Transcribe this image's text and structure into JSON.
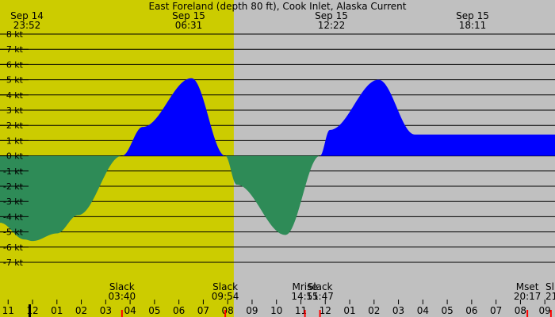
{
  "chart_data": {
    "type": "area",
    "title": "East Foreland (depth 80 ft), Cook Inlet, Alaska Current",
    "y_unit": "kt",
    "ylim": [
      -7,
      8
    ],
    "y_ticks": [
      "8 kt",
      "7 kt",
      "6 kt",
      "5 kt",
      "4 kt",
      "3 kt",
      "2 kt",
      "1 kt",
      "0 kt",
      "-1 kt",
      "-2 kt",
      "-3 kt",
      "-4 kt",
      "-5 kt",
      "-6 kt",
      "-7 kt"
    ],
    "x_range": [
      "2024-09-14T10:40",
      "2024-09-15T09:25"
    ],
    "x_tick_labels": [
      "11",
      "12",
      "01",
      "02",
      "03",
      "04",
      "05",
      "06",
      "07",
      "08",
      "09",
      "10",
      "11",
      "12",
      "01",
      "02",
      "03",
      "04",
      "05",
      "06",
      "07",
      "08",
      "09"
    ],
    "daylight": {
      "start": "2024-09-14T07:40",
      "end": "2024-09-14T20:15"
    },
    "colors": {
      "flood": "#0000ff",
      "ebb": "#2e8b57",
      "night": "#c0c0c0",
      "day": "#cccc00",
      "grid": "#000000",
      "marker": "#ff0000"
    },
    "top_events": [
      {
        "date": "Sep 14",
        "time": "23:52",
        "type": "ebb",
        "speed_kt": -5.6
      },
      {
        "date": "Sep 15",
        "time": "06:31",
        "type": "flood",
        "speed_kt": 5.1
      },
      {
        "date": "Sep 15",
        "time": "12:22",
        "type": "ebb",
        "speed_kt": -5.2
      },
      {
        "date": "Sep 15",
        "time": "18:11",
        "type": "flood",
        "speed_kt": 5.0
      }
    ],
    "curve": {
      "times": [
        "2024-09-14T10:40",
        "2024-09-14T11:40",
        "2024-09-14T12:00",
        "2024-09-14T13:00",
        "2024-09-14T13:52",
        "2024-09-14T15:40",
        "2024-09-14T16:31",
        "2024-09-14T18:31",
        "2024-09-14T19:54",
        "2024-09-14T20:22",
        "2024-09-14T22:22",
        "2024-09-14T23:47",
        "2024-09-15T00:11",
        "2024-09-15T02:11",
        "2024-09-15T03:40"
      ],
      "speeds_kt": [
        -4.4,
        -5.5,
        -5.6,
        -5.1,
        -3.9,
        0,
        1.9,
        5.1,
        0,
        -1.9,
        -5.2,
        0,
        1.7,
        5.0,
        1.4
      ]
    },
    "bottom_events": [
      {
        "label": "Slack",
        "time": "03:40",
        "at": "2024-09-14T15:40"
      },
      {
        "label": "Slack",
        "time": "09:54",
        "at": "2024-09-14T19:54"
      },
      {
        "label": "Mrise",
        "time": "14:51",
        "at": "2024-09-14T23:10"
      },
      {
        "label": "Slack",
        "time": "15:47",
        "at": "2024-09-14T23:47"
      },
      {
        "label": "Mset",
        "time": "20:17",
        "at": "2024-09-15T08:17"
      },
      {
        "label": "Sl",
        "time": "21",
        "at": "2024-09-15T09:15"
      }
    ]
  }
}
